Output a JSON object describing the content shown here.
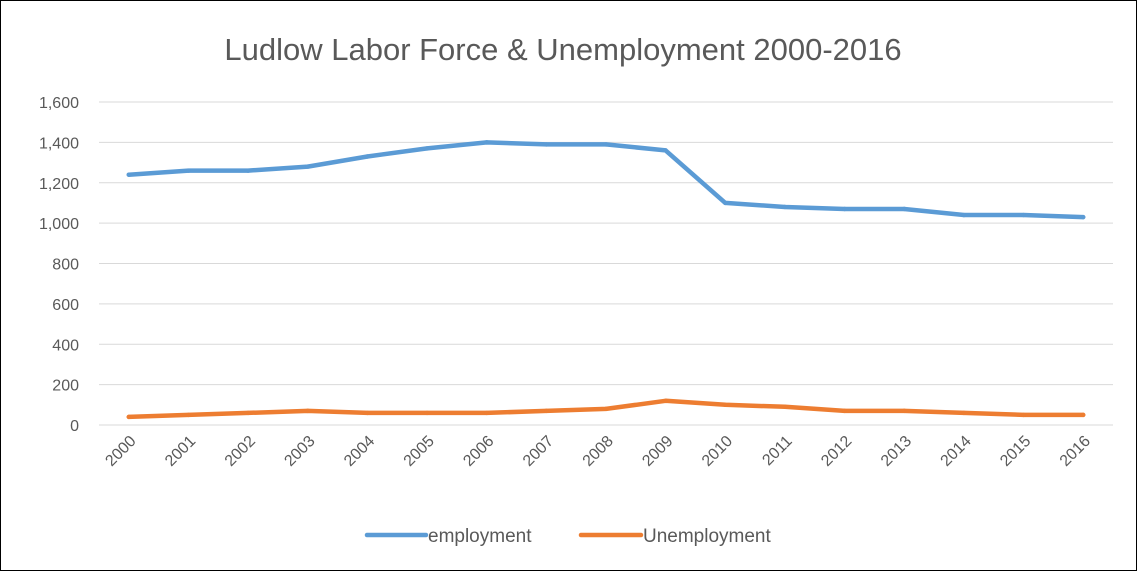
{
  "chart_data": {
    "type": "line",
    "title": "Ludlow Labor Force & Unemployment 2000-2016",
    "xlabel": "",
    "ylabel": "",
    "categories": [
      "2000",
      "2001",
      "2002",
      "2003",
      "2004",
      "2005",
      "2006",
      "2007",
      "2008",
      "2009",
      "2010",
      "2011",
      "2012",
      "2013",
      "2014",
      "2015",
      "2016"
    ],
    "ylim": [
      0,
      1600
    ],
    "yticks": [
      0,
      200,
      400,
      600,
      800,
      1000,
      1200,
      1400,
      1600
    ],
    "ytick_labels": [
      "0",
      "200",
      "400",
      "600",
      "800",
      "1,000",
      "1,200",
      "1,400",
      "1,600"
    ],
    "grid": true,
    "legend_position": "bottom",
    "series": [
      {
        "name": "employment",
        "color": "#5b9bd5",
        "values": [
          1240,
          1260,
          1260,
          1280,
          1330,
          1370,
          1400,
          1390,
          1390,
          1360,
          1100,
          1080,
          1070,
          1070,
          1040,
          1040,
          1030
        ]
      },
      {
        "name": "Unemployment",
        "color": "#ed7d31",
        "values": [
          40,
          50,
          60,
          70,
          60,
          60,
          60,
          70,
          80,
          120,
          100,
          90,
          70,
          70,
          60,
          50,
          50
        ]
      }
    ]
  }
}
